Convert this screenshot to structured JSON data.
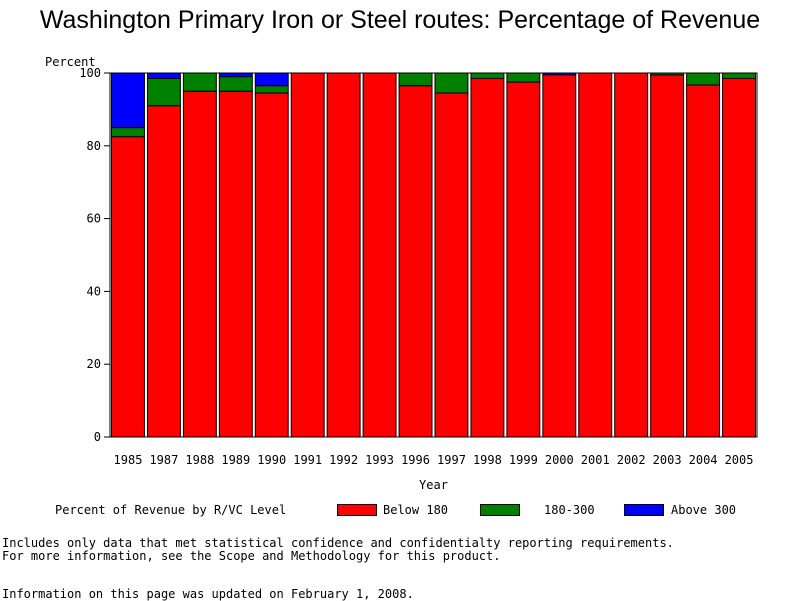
{
  "chart_data": {
    "type": "bar",
    "stacked": true,
    "title": "Washington Primary Iron or Steel routes: Percentage of Revenue",
    "ylabel": "Percent",
    "xlabel": "Year",
    "ylim": [
      0,
      100
    ],
    "yticks": [
      0,
      20,
      40,
      60,
      80,
      100
    ],
    "grid": false,
    "categories": [
      "1985",
      "1987",
      "1988",
      "1989",
      "1990",
      "1991",
      "1992",
      "1993",
      "1996",
      "1997",
      "1998",
      "1999",
      "2000",
      "2001",
      "2002",
      "2003",
      "2004",
      "2005"
    ],
    "series": [
      {
        "name": "Below 180",
        "color": "#ff0000",
        "values": [
          82.5,
          91,
          95,
          95,
          94.5,
          100,
          100,
          100,
          96.5,
          94.5,
          98.5,
          97.5,
          99.5,
          100,
          100,
          99.5,
          96.7,
          98.5
        ]
      },
      {
        "name": "180-300",
        "color": "#008000",
        "values": [
          2.5,
          7.5,
          5,
          4,
          2,
          0,
          0,
          0,
          3.5,
          5.5,
          1.5,
          2.5,
          0,
          0,
          0,
          0.5,
          3.3,
          1.5
        ]
      },
      {
        "name": "Above 300",
        "color": "#0000ff",
        "values": [
          15,
          1.5,
          0,
          1,
          3.5,
          0,
          0,
          0,
          0,
          0,
          0,
          0,
          0.5,
          0,
          0,
          0,
          0,
          0
        ]
      }
    ],
    "legend_title": "Percent of Revenue by R/VC Level",
    "legend_position": "bottom"
  },
  "footer": {
    "note_line1": "Includes only data that met statistical confidence and confidentialty reporting requirements.",
    "note_line2": "For more information, see the Scope and Methodology for this product.",
    "updated": "Information on this page was updated on February 1, 2008."
  }
}
